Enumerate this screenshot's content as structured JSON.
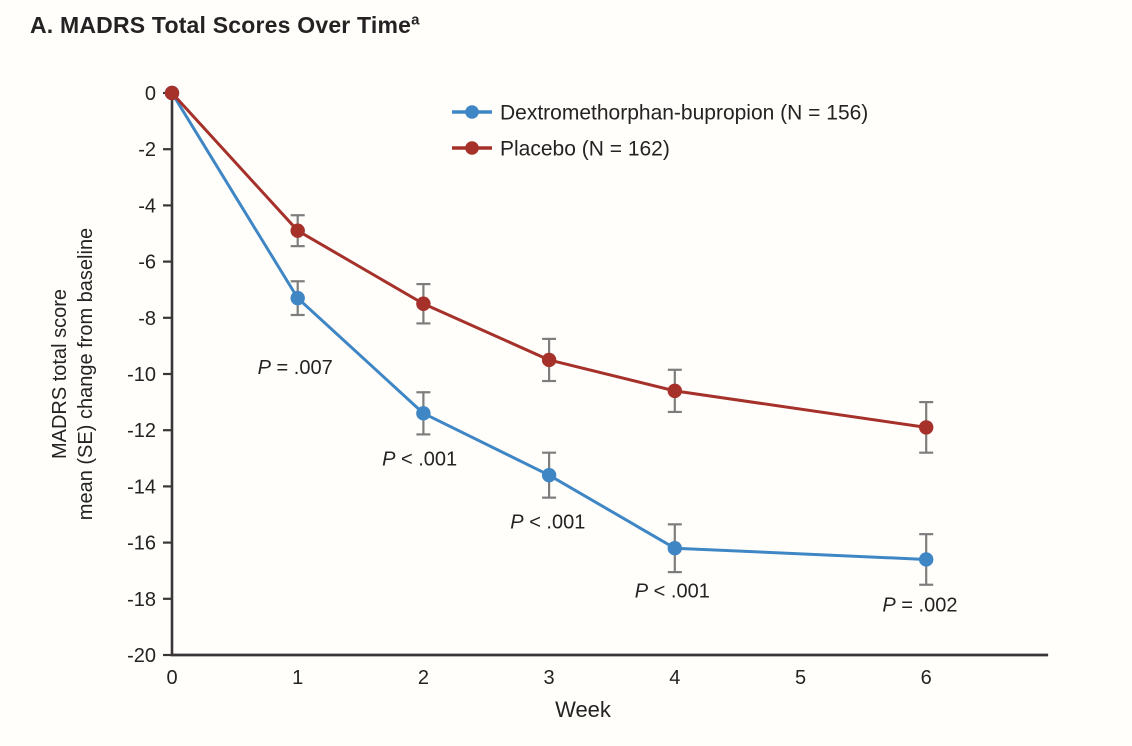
{
  "title": {
    "text": "A. MADRS Total Scores Over Time",
    "superscript": "a"
  },
  "chart_data": {
    "type": "line",
    "x": [
      0,
      1,
      2,
      3,
      4,
      6
    ],
    "series": [
      {
        "name": "Dextromethorphan-bupropion (N = 156)",
        "slug": "dextromethorphan-bupropion",
        "color": "#3f86c5",
        "values": [
          0,
          -7.3,
          -11.4,
          -13.6,
          -16.2,
          -16.6
        ],
        "se": [
          0,
          0.6,
          0.75,
          0.8,
          0.85,
          0.9
        ]
      },
      {
        "name": "Placebo (N = 162)",
        "slug": "placebo",
        "color": "#a5312a",
        "values": [
          0,
          -4.9,
          -7.5,
          -9.5,
          -10.6,
          -11.9
        ],
        "se": [
          0,
          0.55,
          0.7,
          0.75,
          0.75,
          0.9
        ]
      }
    ],
    "xlabel": "Week",
    "ylabel_lines": [
      "MADRS total score",
      "mean (SE) change from baseline"
    ],
    "xticks": [
      0,
      1,
      2,
      3,
      4,
      5,
      6
    ],
    "yticks": [
      0,
      -2,
      -4,
      -6,
      -8,
      -10,
      -12,
      -14,
      -16,
      -18,
      -20
    ],
    "xlim": [
      0,
      6.97
    ],
    "ylim": [
      -20,
      0
    ],
    "grid": false,
    "legend_position": "inside-top-center",
    "error_bar_color": "#7d7d7d",
    "axis_color": "#3a3536",
    "annotations": [
      {
        "prefix": "P",
        "text": " = .007",
        "x": 0.98,
        "y": -9.75
      },
      {
        "prefix": "P",
        "text": " < .001",
        "x": 1.97,
        "y": -13.0
      },
      {
        "prefix": "P",
        "text": " < .001",
        "x": 2.99,
        "y": -15.25
      },
      {
        "prefix": "P",
        "text": " < .001",
        "x": 3.98,
        "y": -17.7
      },
      {
        "prefix": "P",
        "text": " = .002",
        "x": 5.95,
        "y": -18.2
      }
    ]
  }
}
